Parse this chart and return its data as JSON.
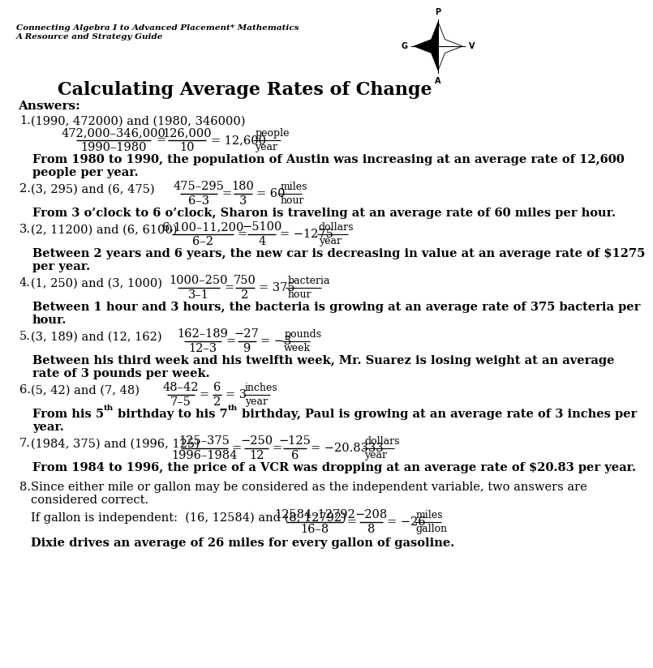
{
  "title": "Calculating Average Rates of Change",
  "header_line1": "Connecting Algebra I to Advanced Placement* Mathematics",
  "header_line2": "A Resource and Strategy Guide",
  "answers_label": "Answers:",
  "bg": "#ffffff",
  "items": [
    {
      "num": "1.",
      "pts": "(1990, 472000) and (1980, 346000)",
      "fn": "472,000–346,000",
      "fd": "1990–1980",
      "e1n": "126,000",
      "e1d": "10",
      "e2": "= 12,600",
      "un": "people",
      "ud": "year",
      "sent": [
        "From 1980 to 1990, the population of Austin was increasing at an average rate of 12,600",
        "people per year."
      ],
      "frac_inline": false
    },
    {
      "num": "2.",
      "pts": "(3, 295) and (6, 475)",
      "fn": "475–295",
      "fd": "6–3",
      "e1n": "180",
      "e1d": "3",
      "e2": "= 60",
      "un": "miles",
      "ud": "hour",
      "sent": [
        "From 3 o’clock to 6 o’clock, Sharon is traveling at an average rate of 60 miles per hour."
      ],
      "frac_inline": true
    },
    {
      "num": "3.",
      "pts": "(2, 11200) and (6, 6100)",
      "fn": "6,100–11,200",
      "fd": "6–2",
      "e1n": "−5100",
      "e1d": "4",
      "e2": "= −1275",
      "un": "dollars",
      "ud": "year",
      "sent": [
        "Between 2 years and 6 years, the new car is decreasing in value at an average rate of $1275",
        "per year."
      ],
      "frac_inline": true
    },
    {
      "num": "4.",
      "pts": "(1, 250) and (3, 1000)",
      "fn": "1000–250",
      "fd": "3–1",
      "e1n": "750",
      "e1d": "2",
      "e2": "= 375",
      "un": "bacteria",
      "ud": "hour",
      "sent": [
        "Between 1 hour and 3 hours, the bacteria is growing at an average rate of 375 bacteria per",
        "hour."
      ],
      "frac_inline": true
    },
    {
      "num": "5.",
      "pts": "(3, 189) and (12, 162)",
      "fn": "162–189",
      "fd": "12–3",
      "e1n": "−27",
      "e1d": "9",
      "e2": "= −3",
      "un": "pounds",
      "ud": "week",
      "sent": [
        "Between his third week and his twelfth week, Mr. Suarez is losing weight at an average",
        "rate of 3 pounds per week."
      ],
      "frac_inline": true
    },
    {
      "num": "6.",
      "pts": "(5, 42) and (7, 48)",
      "fn": "48–42",
      "fd": "7–5",
      "e1n": "6",
      "e1d": "2",
      "e2": "= 3",
      "un": "inches",
      "ud": "year",
      "sent": [
        "From his 5$^{th}$ birthday to his 7$^{th}$ birthday, Paul is growing at an average rate of 3 inches per",
        "year."
      ],
      "frac_inline": true
    },
    {
      "num": "7.",
      "pts": "(1984, 375) and (1996, 125)",
      "fn": "125–375",
      "fd": "1996–1984",
      "e1n": "−250",
      "e1d": "12",
      "e2n": "−125",
      "e2d": "6",
      "e3": "= −20.8333",
      "un": "dollars",
      "ud": "year",
      "sent": [
        "From 1984 to 1996, the price of a VCR was dropping at an average rate of $20.83 per year."
      ],
      "frac_inline": true,
      "triple": true
    },
    {
      "num": "8.",
      "intro": [
        "Since either mile or gallon may be considered as the independent variable, two answers are",
        "considered correct."
      ],
      "gallon_label": "If gallon is independent:  (16, 12584) and (8, 12792)",
      "fn": "12584–12792",
      "fd": "16–8",
      "e1n": "−208",
      "e1d": "8",
      "e2": "= −26",
      "un": "miles",
      "ud": "gallon",
      "sent": [
        "Dixie drives an average of 26 miles for every gallon of gasoline."
      ],
      "frac_inline": true
    }
  ]
}
